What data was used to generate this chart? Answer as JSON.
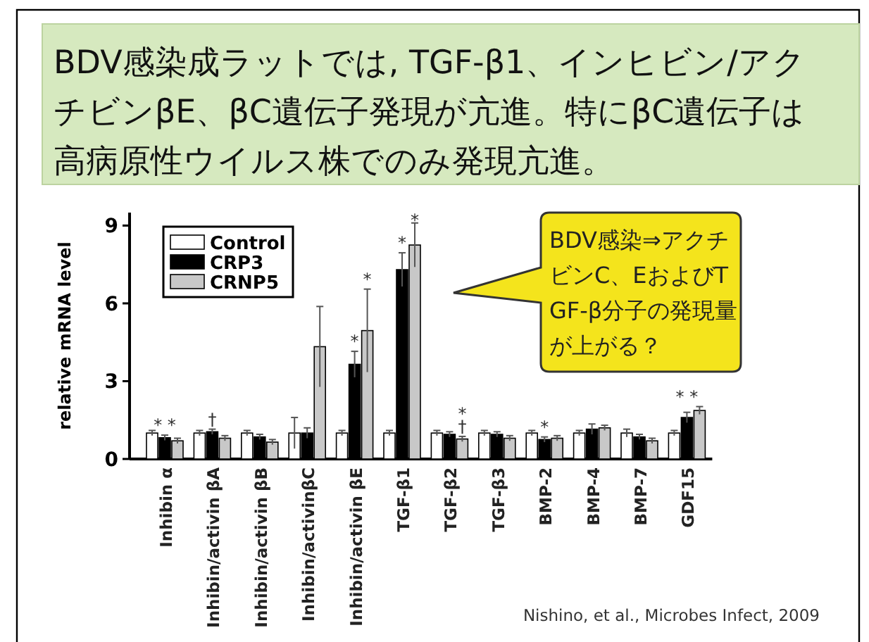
{
  "chart_data": {
    "type": "bar",
    "title": "BDV感染成ラットでは, TGF-β1、インヒビン/アクチビンβE、βC遺伝子発現が亢進。特にβC遺伝子は高病原性ウイルス株でのみ発現亢進。",
    "ylabel": "relative mRNA level",
    "categories": [
      "Inhibin α",
      "Inhibin/activin βA",
      "Inhibin/activin βB",
      "Inhibin/activinβC",
      "Inhibin/activin βE",
      "TGF-β1",
      "TGF-β2",
      "TGF-β3",
      "BMP-2",
      "BMP-4",
      "BMP-7",
      "GDF15"
    ],
    "series": [
      {
        "name": "Control",
        "color": "#ffffff",
        "values": [
          1.0,
          1.0,
          1.0,
          1.0,
          1.0,
          1.0,
          1.0,
          1.0,
          1.0,
          1.0,
          1.0,
          1.0
        ],
        "errors": [
          0.1,
          0.1,
          0.1,
          0.6,
          0.1,
          0.1,
          0.1,
          0.1,
          0.1,
          0.1,
          0.15,
          0.1
        ]
      },
      {
        "name": "CRP3",
        "color": "#000000",
        "values": [
          0.82,
          1.05,
          0.85,
          1.0,
          3.65,
          7.3,
          0.95,
          0.95,
          0.75,
          1.15,
          0.85,
          1.6
        ],
        "errors": [
          0.1,
          0.1,
          0.1,
          0.2,
          0.5,
          0.65,
          0.1,
          0.1,
          0.1,
          0.2,
          0.1,
          0.2
        ]
      },
      {
        "name": "CRNP5",
        "color": "#c8c8c8",
        "values": [
          0.7,
          0.8,
          0.65,
          4.33,
          4.95,
          8.25,
          0.77,
          0.8,
          0.8,
          1.2,
          0.7,
          1.87
        ],
        "errors": [
          0.1,
          0.1,
          0.1,
          1.55,
          1.6,
          0.85,
          0.1,
          0.1,
          0.1,
          0.1,
          0.1,
          0.15
        ]
      }
    ],
    "ylim": [
      0,
      9.5
    ],
    "yticks": [
      0,
      3,
      6,
      9
    ],
    "legend": "top left",
    "grid": false,
    "annotations": [
      "BDV感染⇒アクチビンC、EおよびTGF-β分子の発現量が上がる？",
      "Nishino, et al., Microbes Infect, 2009",
      {
        "text": "* *",
        "x": "Inhibin α",
        "y": 0.92
      },
      {
        "text": "†",
        "x": "Inhibin/activin βA",
        "y": 1.15
      },
      {
        "text": "*",
        "x": "Inhibin/activin βE",
        "y": 4.15
      },
      "*",
      {
        "text": "*",
        "x": "TGF-β1",
        "y": 7.95
      },
      {
        "text": "*",
        "x": "TGF-β1",
        "y": 8.25
      },
      {
        "text": "†",
        "x": "TGF-β2",
        "y": 0.87
      },
      {
        "text": "*",
        "x": "TGF-β2",
        "y": 0.87
      },
      {
        "text": "*",
        "x": "BMP-2",
        "y": 0.85
      },
      {
        "text": "* *",
        "x": "GDF15",
        "y": 2.02
      }
    ]
  }
}
